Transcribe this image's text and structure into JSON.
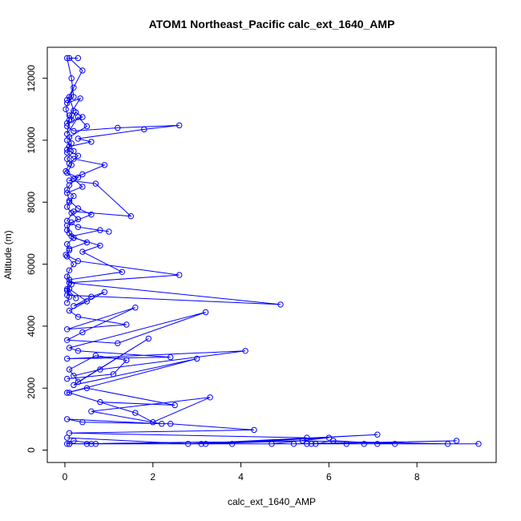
{
  "chart_data": {
    "type": "line",
    "title": "ATOM1 Northeast_Pacific calc_ext_1640_AMP",
    "xlabel": "calc_ext_1640_AMP",
    "ylabel": "Altitude (m)",
    "xlim": [
      -0.4,
      9.8
    ],
    "ylim": [
      -400,
      13000
    ],
    "xticks": [
      0,
      2,
      4,
      6,
      8
    ],
    "yticks": [
      0,
      2000,
      4000,
      6000,
      8000,
      10000,
      12000
    ],
    "xtick_labels": [
      "0",
      "2",
      "4",
      "6",
      "8"
    ],
    "ytick_labels": [
      "0",
      "2000",
      "4000",
      "6000",
      "8000",
      "10000",
      "12000"
    ],
    "series_color": "#0000ff",
    "markers": "open-circle",
    "series": [
      {
        "x": [
          0.1,
          0.4,
          0.05,
          0.2,
          0.02,
          0.1,
          0.05,
          0.3,
          0.5,
          0.1,
          0.15,
          0.05,
          0.3,
          0.1,
          0.02,
          0.2,
          0.4,
          0.05,
          0.1,
          0.3,
          0.6,
          0.15,
          0.05,
          0.2,
          0.8,
          0.4,
          1.3,
          0.1,
          0.05,
          0.25
        ],
        "y": [
          12650,
          12250,
          11300,
          11700,
          11000,
          10650,
          10200,
          10750,
          10450,
          10100,
          9900,
          9700,
          9500,
          9250,
          9000,
          8750,
          8500,
          8300,
          8050,
          7800,
          7600,
          7350,
          7100,
          6850,
          6600,
          6400,
          5750,
          5500,
          5200,
          4900
        ]
      },
      {
        "x": [
          0.05,
          0.2,
          1.2,
          2.6,
          1.8,
          0.3,
          0.6,
          0.1,
          0.05,
          0.2,
          0.9,
          0.4,
          0.1,
          0.7,
          1.5,
          0.2,
          0.05,
          0.3,
          1.0,
          0.8,
          0.15,
          0.5,
          0.1
        ],
        "y": [
          10450,
          10300,
          10400,
          10480,
          10350,
          10050,
          9950,
          9800,
          9600,
          9400,
          9200,
          8900,
          8700,
          8600,
          7550,
          7700,
          7400,
          7200,
          7050,
          7100,
          6900,
          6700,
          6500
        ]
      },
      {
        "x": [
          0.02,
          0.3,
          2.6,
          0.1,
          4.9,
          0.05,
          0.1,
          0.5,
          0.2,
          0.6,
          0.9,
          0.1,
          0.3,
          1.4,
          0.05,
          1.6,
          0.4,
          0.05,
          1.2,
          3.2,
          0.1,
          0.3,
          2.4,
          0.05,
          4.1,
          0.8,
          0.2
        ],
        "y": [
          6300,
          6100,
          5650,
          5400,
          4700,
          5000,
          5200,
          4800,
          4650,
          4950,
          5100,
          4500,
          4300,
          4050,
          3900,
          4600,
          3800,
          3550,
          3450,
          4450,
          3300,
          3200,
          3000,
          2950,
          3200,
          2600,
          2400
        ]
      },
      {
        "x": [
          0.05,
          1.1,
          1.4,
          0.7,
          0.1,
          0.3,
          1.9,
          0.2,
          3.0,
          0.05,
          0.5,
          2.5,
          0.8,
          0.1,
          1.6,
          2.0,
          3.3,
          0.6,
          2.2,
          0.05,
          0.4,
          2.4,
          4.3,
          0.1,
          5.5
        ],
        "y": [
          2300,
          2450,
          2900,
          3050,
          2600,
          2200,
          3600,
          2100,
          2950,
          1850,
          2000,
          1450,
          1550,
          1850,
          1200,
          900,
          1700,
          1250,
          850,
          1000,
          900,
          850,
          650,
          550,
          400
        ]
      },
      {
        "x": [
          0.05,
          2.8,
          7.1,
          3.1,
          5.4,
          8.7,
          4.7,
          6.0,
          3.2,
          6.4,
          5.5,
          9.4,
          3.8,
          6.8,
          5.2,
          8.9,
          5.6,
          7.5,
          6.1,
          5.7,
          7.1,
          0.1,
          5.4,
          0.6,
          0.05,
          0.2,
          0.7,
          0.5,
          0.1
        ],
        "y": [
          400,
          200,
          500,
          200,
          300,
          200,
          200,
          400,
          200,
          200,
          200,
          200,
          200,
          200,
          200,
          300,
          200,
          200,
          300,
          200,
          200,
          200,
          300,
          200,
          200,
          300,
          200,
          200,
          200
        ]
      },
      {
        "x": [
          0.3,
          0.05,
          0.15,
          0.2,
          0.05,
          0.35,
          0.1,
          0.15,
          0.25,
          0.4,
          0.05,
          0.2,
          0.1
        ],
        "y": [
          12650,
          12650,
          12000,
          11400,
          11200,
          11350,
          10800,
          10650,
          10900,
          10750,
          10550,
          10950,
          11400
        ]
      },
      {
        "x": [
          0.05,
          0.1,
          0.2,
          0.05,
          0.15,
          0.05,
          0.3,
          0.1,
          0.05,
          0.2,
          0.1,
          0.05,
          0.15,
          0.3,
          0.05,
          0.1,
          0.2,
          0.05,
          0.1,
          0.05,
          0.2,
          0.1,
          0.05,
          0.15,
          0.05,
          0.1,
          0.05
        ],
        "y": [
          10000,
          9800,
          9650,
          9400,
          9200,
          8950,
          8800,
          8550,
          8400,
          8200,
          8000,
          7850,
          7650,
          7450,
          7250,
          7000,
          6850,
          6650,
          6450,
          6250,
          6000,
          5800,
          5600,
          5350,
          5150,
          4950,
          4750
        ]
      }
    ]
  }
}
